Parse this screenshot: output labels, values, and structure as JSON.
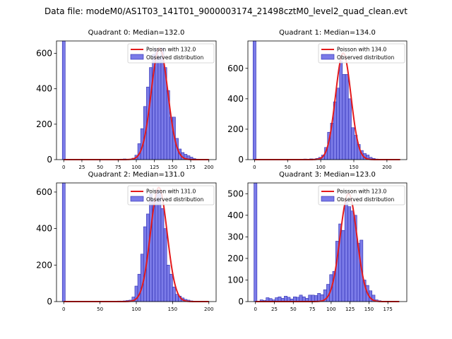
{
  "figure_title": "Data file: modeM0/AS1T03_141T01_9000003174_21498cztM0_level2_quad_clean.evt",
  "colors": {
    "hist_fill": "#7b7be8",
    "hist_edge": "#2b2bb0",
    "poisson_line": "#e41a1c"
  },
  "chart_data": [
    {
      "type": "bar",
      "title": "Quadrant 0: Median=132.0",
      "xlim": [
        -10,
        210
      ],
      "ylim": [
        0,
        670
      ],
      "xticks": [
        0,
        25,
        50,
        75,
        100,
        125,
        150,
        175,
        200
      ],
      "yticks": [
        0,
        200,
        400,
        600
      ],
      "legend": {
        "line": "Poisson with 132.0",
        "patch": "Observed distribution",
        "position": "top-right"
      },
      "bin_width": 4,
      "poisson_lambda": 132.0,
      "poisson_amplitude": 630,
      "bins": [
        {
          "x": 0,
          "y": 670
        },
        {
          "x": 80,
          "y": 3
        },
        {
          "x": 84,
          "y": 4
        },
        {
          "x": 88,
          "y": 2
        },
        {
          "x": 92,
          "y": 3
        },
        {
          "x": 96,
          "y": 8
        },
        {
          "x": 100,
          "y": 25
        },
        {
          "x": 104,
          "y": 90
        },
        {
          "x": 108,
          "y": 175
        },
        {
          "x": 112,
          "y": 300
        },
        {
          "x": 116,
          "y": 410
        },
        {
          "x": 120,
          "y": 520
        },
        {
          "x": 124,
          "y": 595
        },
        {
          "x": 128,
          "y": 625
        },
        {
          "x": 132,
          "y": 580
        },
        {
          "x": 136,
          "y": 630
        },
        {
          "x": 140,
          "y": 520
        },
        {
          "x": 144,
          "y": 390
        },
        {
          "x": 148,
          "y": 240
        },
        {
          "x": 152,
          "y": 240
        },
        {
          "x": 156,
          "y": 120
        },
        {
          "x": 160,
          "y": 60
        },
        {
          "x": 164,
          "y": 40
        },
        {
          "x": 168,
          "y": 30
        },
        {
          "x": 172,
          "y": 22
        },
        {
          "x": 176,
          "y": 14
        },
        {
          "x": 180,
          "y": 6
        },
        {
          "x": 184,
          "y": 3
        }
      ]
    },
    {
      "type": "bar",
      "title": "Quadrant 1: Median=134.0",
      "xlim": [
        -10,
        230
      ],
      "ylim": [
        0,
        780
      ],
      "xticks": [
        0,
        50,
        100,
        150,
        200
      ],
      "yticks": [
        0,
        200,
        400,
        600
      ],
      "legend": {
        "line": "Poisson with 134.0",
        "patch": "Observed distribution",
        "position": "top-right"
      },
      "bin_width": 4.5,
      "poisson_lambda": 134.0,
      "poisson_amplitude": 700,
      "bins": [
        {
          "x": 0,
          "y": 780
        },
        {
          "x": 72,
          "y": 3
        },
        {
          "x": 76.5,
          "y": 4
        },
        {
          "x": 81,
          "y": 3
        },
        {
          "x": 85.5,
          "y": 5
        },
        {
          "x": 90,
          "y": 4
        },
        {
          "x": 94.5,
          "y": 8
        },
        {
          "x": 99,
          "y": 15
        },
        {
          "x": 103.5,
          "y": 30
        },
        {
          "x": 108,
          "y": 80
        },
        {
          "x": 112.5,
          "y": 180
        },
        {
          "x": 117,
          "y": 240
        },
        {
          "x": 121.5,
          "y": 380
        },
        {
          "x": 126,
          "y": 470
        },
        {
          "x": 130.5,
          "y": 650
        },
        {
          "x": 135,
          "y": 560
        },
        {
          "x": 139.5,
          "y": 560
        },
        {
          "x": 144,
          "y": 400
        },
        {
          "x": 148.5,
          "y": 210
        },
        {
          "x": 153,
          "y": 160
        },
        {
          "x": 157.5,
          "y": 100
        },
        {
          "x": 162,
          "y": 60
        },
        {
          "x": 166.5,
          "y": 40
        },
        {
          "x": 171,
          "y": 30
        },
        {
          "x": 175.5,
          "y": 15
        },
        {
          "x": 180,
          "y": 8
        },
        {
          "x": 184.5,
          "y": 4
        }
      ]
    },
    {
      "type": "bar",
      "title": "Quadrant 2: Median=131.0",
      "xlim": [
        -10,
        210
      ],
      "ylim": [
        0,
        650
      ],
      "xticks": [
        0,
        50,
        100,
        150,
        200
      ],
      "yticks": [
        0,
        200,
        400,
        600
      ],
      "legend": {
        "line": "Poisson with 131.0",
        "patch": "Observed distribution",
        "position": "top-right"
      },
      "bin_width": 4,
      "poisson_lambda": 131.0,
      "poisson_amplitude": 625,
      "bins": [
        {
          "x": 0,
          "y": 650
        },
        {
          "x": 68,
          "y": 2
        },
        {
          "x": 72,
          "y": 2
        },
        {
          "x": 76,
          "y": 3
        },
        {
          "x": 80,
          "y": 3
        },
        {
          "x": 84,
          "y": 4
        },
        {
          "x": 88,
          "y": 6
        },
        {
          "x": 92,
          "y": 8
        },
        {
          "x": 96,
          "y": 25
        },
        {
          "x": 100,
          "y": 85
        },
        {
          "x": 104,
          "y": 150
        },
        {
          "x": 108,
          "y": 260
        },
        {
          "x": 112,
          "y": 410
        },
        {
          "x": 116,
          "y": 480
        },
        {
          "x": 120,
          "y": 590
        },
        {
          "x": 124,
          "y": 560
        },
        {
          "x": 128,
          "y": 610
        },
        {
          "x": 132,
          "y": 610
        },
        {
          "x": 136,
          "y": 510
        },
        {
          "x": 140,
          "y": 400
        },
        {
          "x": 144,
          "y": 200
        },
        {
          "x": 148,
          "y": 150
        },
        {
          "x": 152,
          "y": 80
        },
        {
          "x": 156,
          "y": 40
        },
        {
          "x": 160,
          "y": 30
        },
        {
          "x": 164,
          "y": 20
        },
        {
          "x": 168,
          "y": 12
        },
        {
          "x": 172,
          "y": 8
        },
        {
          "x": 176,
          "y": 4
        }
      ]
    },
    {
      "type": "bar",
      "title": "Quadrant 3: Median=123.0",
      "xlim": [
        -10,
        200
      ],
      "ylim": [
        0,
        550
      ],
      "xticks": [
        0,
        25,
        50,
        75,
        100,
        125,
        150,
        175
      ],
      "yticks": [
        0,
        100,
        200,
        300,
        400,
        500
      ],
      "legend": {
        "line": "Poisson with 123.0",
        "patch": "Observed distribution",
        "position": "top-right"
      },
      "bin_width": 4,
      "poisson_lambda": 123.0,
      "poisson_amplitude": 500,
      "bins": [
        {
          "x": 0,
          "y": 550
        },
        {
          "x": 8,
          "y": 8
        },
        {
          "x": 12,
          "y": 5
        },
        {
          "x": 16,
          "y": 18
        },
        {
          "x": 20,
          "y": 14
        },
        {
          "x": 24,
          "y": 8
        },
        {
          "x": 28,
          "y": 18
        },
        {
          "x": 32,
          "y": 22
        },
        {
          "x": 36,
          "y": 15
        },
        {
          "x": 40,
          "y": 25
        },
        {
          "x": 44,
          "y": 20
        },
        {
          "x": 48,
          "y": 12
        },
        {
          "x": 52,
          "y": 22
        },
        {
          "x": 56,
          "y": 20
        },
        {
          "x": 60,
          "y": 30
        },
        {
          "x": 64,
          "y": 22
        },
        {
          "x": 68,
          "y": 15
        },
        {
          "x": 72,
          "y": 30
        },
        {
          "x": 76,
          "y": 30
        },
        {
          "x": 80,
          "y": 28
        },
        {
          "x": 84,
          "y": 38
        },
        {
          "x": 88,
          "y": 32
        },
        {
          "x": 92,
          "y": 55
        },
        {
          "x": 96,
          "y": 80
        },
        {
          "x": 100,
          "y": 125
        },
        {
          "x": 104,
          "y": 140
        },
        {
          "x": 108,
          "y": 280
        },
        {
          "x": 112,
          "y": 360
        },
        {
          "x": 116,
          "y": 330
        },
        {
          "x": 120,
          "y": 470
        },
        {
          "x": 124,
          "y": 440
        },
        {
          "x": 128,
          "y": 420
        },
        {
          "x": 132,
          "y": 400
        },
        {
          "x": 136,
          "y": 270
        },
        {
          "x": 140,
          "y": 285
        },
        {
          "x": 144,
          "y": 100
        },
        {
          "x": 148,
          "y": 75
        },
        {
          "x": 152,
          "y": 50
        },
        {
          "x": 156,
          "y": 30
        },
        {
          "x": 160,
          "y": 8
        },
        {
          "x": 164,
          "y": 4
        }
      ]
    }
  ]
}
